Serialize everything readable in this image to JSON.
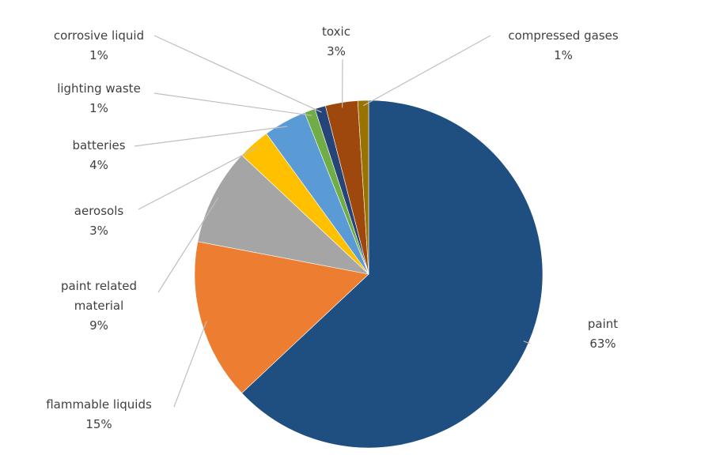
{
  "chart_data": {
    "type": "pie",
    "categories": [
      "paint",
      "flammable liquids",
      "paint related material",
      "aerosols",
      "batteries",
      "lighting waste",
      "corrosive liquid",
      "toxic",
      "compressed gases"
    ],
    "values": [
      63,
      15,
      9,
      3,
      4,
      1,
      1,
      3,
      1
    ],
    "value_labels": [
      "63%",
      "15%",
      "9%",
      "3%",
      "4%",
      "1%",
      "1%",
      "3%",
      "1%"
    ],
    "colors": [
      "#1f4e80",
      "#ed7d31",
      "#a5a5a5",
      "#ffc000",
      "#5b9bd5",
      "#70ad47",
      "#264478",
      "#9e480e",
      "#997300"
    ]
  }
}
